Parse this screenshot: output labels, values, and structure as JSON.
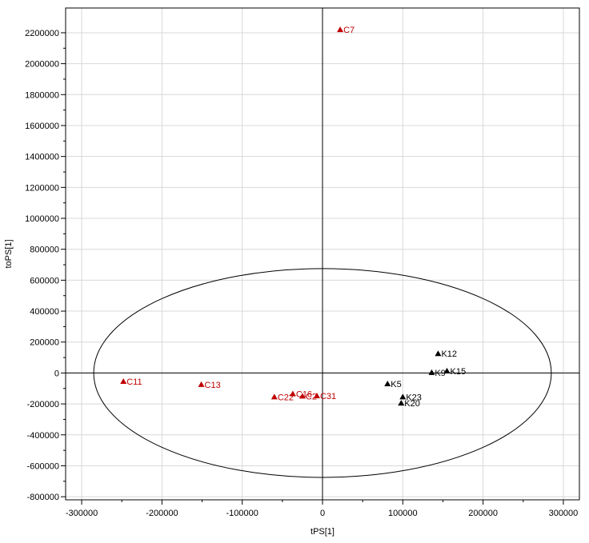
{
  "chart_data": {
    "type": "scatter",
    "xlabel": "tPS[1]",
    "ylabel": "toPS[1]",
    "xlim": [
      -320000,
      320000
    ],
    "ylim": [
      -820000,
      2360000
    ],
    "xticks": [
      -300000,
      -200000,
      -100000,
      0,
      100000,
      200000,
      300000
    ],
    "yticks": [
      -800000,
      -600000,
      -400000,
      -200000,
      0,
      200000,
      400000,
      600000,
      800000,
      1000000,
      1200000,
      1400000,
      1600000,
      1800000,
      2000000,
      2200000
    ],
    "grid": true,
    "ellipse": {
      "cx": 0,
      "cy": 0,
      "rx": 285000,
      "ry": 675000
    },
    "colors": {
      "C": "#c00000",
      "K": "#000000"
    },
    "points": [
      {
        "label": "C7",
        "x": 22000,
        "y": 2220000,
        "group": "C"
      },
      {
        "label": "C11",
        "x": -248000,
        "y": -55000,
        "group": "C"
      },
      {
        "label": "C13",
        "x": -151000,
        "y": -75000,
        "group": "C"
      },
      {
        "label": "C22",
        "x": -60000,
        "y": -155000,
        "group": "C"
      },
      {
        "label": "C16",
        "x": -37000,
        "y": -135000,
        "group": "C"
      },
      {
        "label": "C2",
        "x": -25000,
        "y": -150000,
        "group": "C"
      },
      {
        "label": "C31",
        "x": -7000,
        "y": -148000,
        "group": "C"
      },
      {
        "label": "K5",
        "x": 81000,
        "y": -70000,
        "group": "K"
      },
      {
        "label": "K12",
        "x": 144000,
        "y": 125000,
        "group": "K"
      },
      {
        "label": "K9",
        "x": 136000,
        "y": 3000,
        "group": "K"
      },
      {
        "label": "K15",
        "x": 155000,
        "y": 13000,
        "group": "K"
      },
      {
        "label": "K23",
        "x": 100000,
        "y": -155000,
        "group": "K"
      },
      {
        "label": "K20",
        "x": 98000,
        "y": -195000,
        "group": "K"
      }
    ]
  }
}
